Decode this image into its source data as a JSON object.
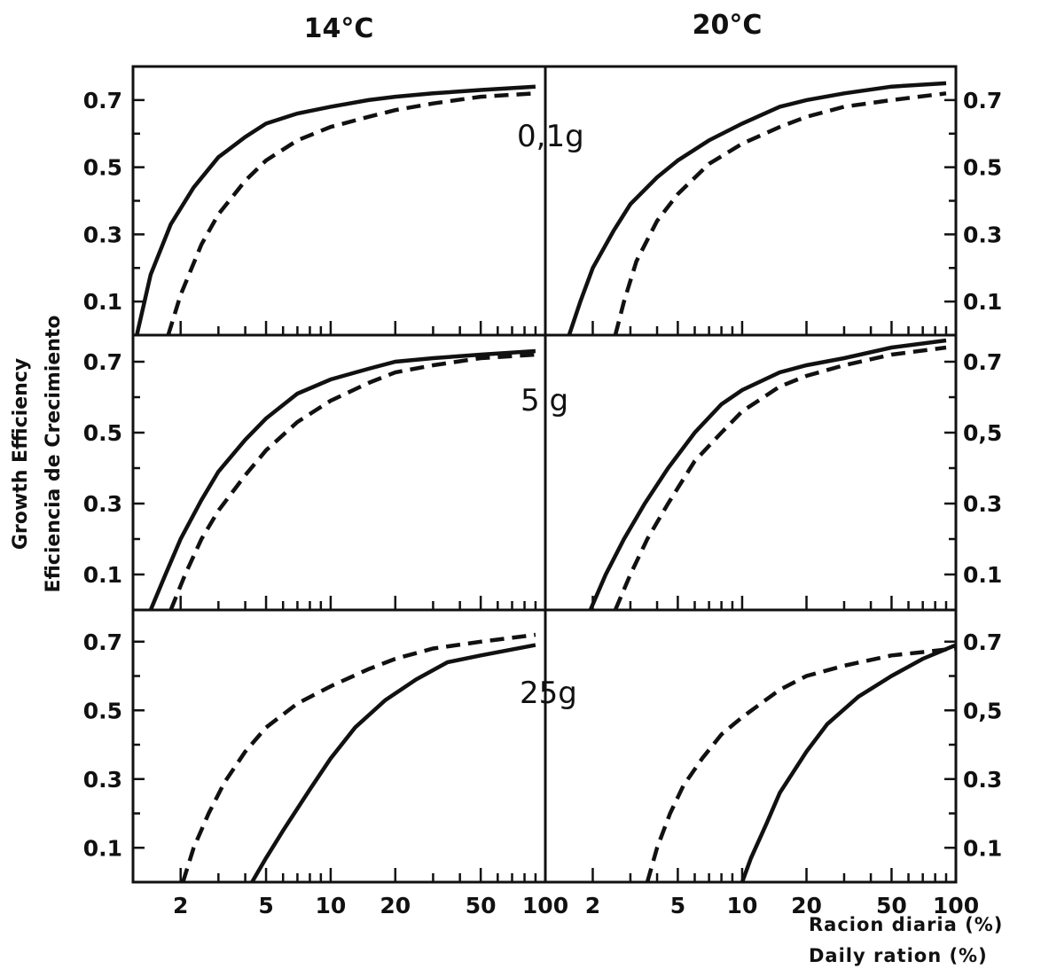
{
  "chart_data": {
    "type": "line",
    "columns": [
      {
        "temperature": "14°C"
      },
      {
        "temperature": "20°C"
      }
    ],
    "panel_labels": [
      "0,1g",
      "5 g",
      "25g"
    ],
    "ylabel": [
      "Growth Efficiency",
      "Eficiencia de Crecimiento"
    ],
    "xlabel": [
      "Racion diaria (%)",
      "Daily ration (%)"
    ],
    "x_scale": "log",
    "xlim": [
      1.2,
      100
    ],
    "ylim": [
      0,
      0.8
    ],
    "x_tick_labels": [
      "2",
      "5",
      "10",
      "20",
      "50",
      "100"
    ],
    "x_tick_values": [
      2,
      5,
      10,
      20,
      50,
      100
    ],
    "y_tick_labels_left": [
      "0.1",
      "0.3",
      "0.5",
      "0.7"
    ],
    "y_tick_labels_right": [
      [
        "0.1",
        "0.3",
        "0.5",
        "0.7"
      ],
      [
        "0.1",
        "0.3",
        "0,5",
        "0.7"
      ],
      [
        "0.1",
        "0.3",
        "0,5",
        "0.7"
      ]
    ],
    "y_tick_values": [
      0.1,
      0.3,
      0.5,
      0.7
    ],
    "panels": [
      {
        "row": 0,
        "col": 0,
        "series": [
          {
            "style": "solid",
            "x": [
              1.25,
              1.45,
              1.8,
              2.3,
              3,
              4,
              5,
              7,
              10,
              15,
              20,
              30,
              50,
              90
            ],
            "y": [
              0,
              0.18,
              0.33,
              0.44,
              0.53,
              0.59,
              0.63,
              0.66,
              0.68,
              0.7,
              0.71,
              0.72,
              0.73,
              0.74
            ]
          },
          {
            "style": "dashed",
            "x": [
              1.75,
              2,
              2.5,
              3,
              4,
              5,
              7,
              10,
              15,
              20,
              30,
              50,
              90
            ],
            "y": [
              0,
              0.12,
              0.27,
              0.36,
              0.46,
              0.52,
              0.58,
              0.62,
              0.65,
              0.67,
              0.69,
              0.71,
              0.72
            ]
          }
        ]
      },
      {
        "row": 0,
        "col": 1,
        "series": [
          {
            "style": "solid",
            "x": [
              1.55,
              1.75,
              2,
              2.5,
              3,
              4,
              5,
              7,
              10,
              15,
              20,
              30,
              50,
              90
            ],
            "y": [
              0,
              0.1,
              0.2,
              0.31,
              0.39,
              0.47,
              0.52,
              0.58,
              0.63,
              0.68,
              0.7,
              0.72,
              0.74,
              0.75
            ]
          },
          {
            "style": "dashed",
            "x": [
              2.55,
              2.8,
              3.2,
              4,
              5,
              7,
              10,
              15,
              20,
              30,
              50,
              90
            ],
            "y": [
              0,
              0.1,
              0.22,
              0.34,
              0.42,
              0.51,
              0.57,
              0.62,
              0.65,
              0.68,
              0.7,
              0.72
            ]
          }
        ]
      },
      {
        "row": 1,
        "col": 0,
        "series": [
          {
            "style": "solid",
            "x": [
              1.45,
              1.7,
              2,
              2.5,
              3,
              4,
              5,
              7,
              10,
              15,
              20,
              30,
              50,
              90
            ],
            "y": [
              0,
              0.1,
              0.2,
              0.31,
              0.39,
              0.48,
              0.54,
              0.61,
              0.65,
              0.68,
              0.7,
              0.71,
              0.72,
              0.73
            ]
          },
          {
            "style": "dashed",
            "x": [
              1.8,
              2.1,
              2.5,
              3,
              4,
              5,
              7,
              10,
              15,
              20,
              30,
              50,
              90
            ],
            "y": [
              0,
              0.1,
              0.2,
              0.28,
              0.38,
              0.45,
              0.53,
              0.59,
              0.64,
              0.67,
              0.69,
              0.71,
              0.72
            ]
          }
        ]
      },
      {
        "row": 1,
        "col": 1,
        "series": [
          {
            "style": "solid",
            "x": [
              1.95,
              2.3,
              2.8,
              3.5,
              4.5,
              6,
              8,
              10,
              15,
              20,
              30,
              50,
              90
            ],
            "y": [
              0,
              0.1,
              0.2,
              0.3,
              0.4,
              0.5,
              0.58,
              0.62,
              0.67,
              0.69,
              0.71,
              0.74,
              0.76
            ]
          },
          {
            "style": "dashed",
            "x": [
              2.55,
              3,
              3.6,
              4.5,
              6,
              8,
              10,
              15,
              20,
              30,
              50,
              90
            ],
            "y": [
              0,
              0.1,
              0.2,
              0.3,
              0.42,
              0.5,
              0.56,
              0.63,
              0.66,
              0.69,
              0.72,
              0.74
            ]
          }
        ]
      },
      {
        "row": 2,
        "col": 0,
        "series": [
          {
            "style": "solid",
            "x": [
              4.3,
              5,
              6,
              8,
              10,
              13,
              18,
              25,
              35,
              50,
              90
            ],
            "y": [
              0,
              0.07,
              0.15,
              0.27,
              0.36,
              0.45,
              0.53,
              0.59,
              0.64,
              0.66,
              0.69
            ]
          },
          {
            "style": "dashed",
            "x": [
              2.05,
              2.3,
              2.7,
              3.2,
              4,
              5,
              7,
              10,
              15,
              20,
              30,
              50,
              90
            ],
            "y": [
              0,
              0.1,
              0.2,
              0.29,
              0.38,
              0.45,
              0.52,
              0.57,
              0.62,
              0.65,
              0.68,
              0.7,
              0.72
            ]
          }
        ]
      },
      {
        "row": 2,
        "col": 1,
        "series": [
          {
            "style": "solid",
            "x": [
              10,
              11,
              13,
              15,
              20,
              25,
              35,
              50,
              70,
              100
            ],
            "y": [
              0,
              0.07,
              0.17,
              0.26,
              0.38,
              0.46,
              0.54,
              0.6,
              0.65,
              0.69
            ]
          },
          {
            "style": "dashed",
            "x": [
              3.6,
              4,
              4.6,
              5.3,
              6.5,
              8,
              10,
              15,
              20,
              30,
              50,
              100
            ],
            "y": [
              0,
              0.1,
              0.2,
              0.28,
              0.36,
              0.43,
              0.48,
              0.56,
              0.6,
              0.63,
              0.66,
              0.68
            ]
          }
        ]
      }
    ]
  }
}
